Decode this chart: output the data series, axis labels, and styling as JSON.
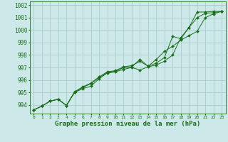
{
  "title": "Graphe pression niveau de la mer (hPa)",
  "background_color": "#cce8e8",
  "grid_color": "#aacccc",
  "line_color": "#1a6e1a",
  "xlim": [
    -0.5,
    23.5
  ],
  "ylim": [
    993.3,
    1002.3
  ],
  "yticks": [
    994,
    995,
    996,
    997,
    998,
    999,
    1000,
    1001,
    1002
  ],
  "xticks": [
    0,
    1,
    2,
    3,
    4,
    5,
    6,
    7,
    8,
    9,
    10,
    11,
    12,
    13,
    14,
    15,
    16,
    17,
    18,
    19,
    20,
    21,
    22,
    23
  ],
  "series": [
    [
      993.6,
      993.9,
      994.3,
      994.45,
      993.95,
      995.0,
      995.3,
      995.5,
      996.1,
      996.55,
      996.65,
      996.85,
      997.0,
      996.8,
      997.05,
      997.2,
      997.5,
      998.0,
      999.4,
      1000.2,
      1001.0,
      1001.35,
      1001.4,
      1001.5
    ],
    [
      993.6,
      993.9,
      994.3,
      994.45,
      993.95,
      995.05,
      995.45,
      995.75,
      996.25,
      996.65,
      996.75,
      997.05,
      997.15,
      997.5,
      997.1,
      997.65,
      998.3,
      998.7,
      999.2,
      999.55,
      999.9,
      1001.0,
      1001.3,
      1001.5
    ],
    [
      993.6,
      993.9,
      994.3,
      994.45,
      993.95,
      995.0,
      995.4,
      995.7,
      996.2,
      996.6,
      996.7,
      997.0,
      997.05,
      997.65,
      997.1,
      997.35,
      997.8,
      999.5,
      999.3,
      1000.2,
      1001.45,
      1001.45,
      1001.5,
      1001.5
    ]
  ],
  "marker": "D",
  "marker_size": 2.0,
  "linewidth": 0.7,
  "ylabel_fontsize": 5.5,
  "xlabel_fontsize": 4.5,
  "title_fontsize": 6.5
}
